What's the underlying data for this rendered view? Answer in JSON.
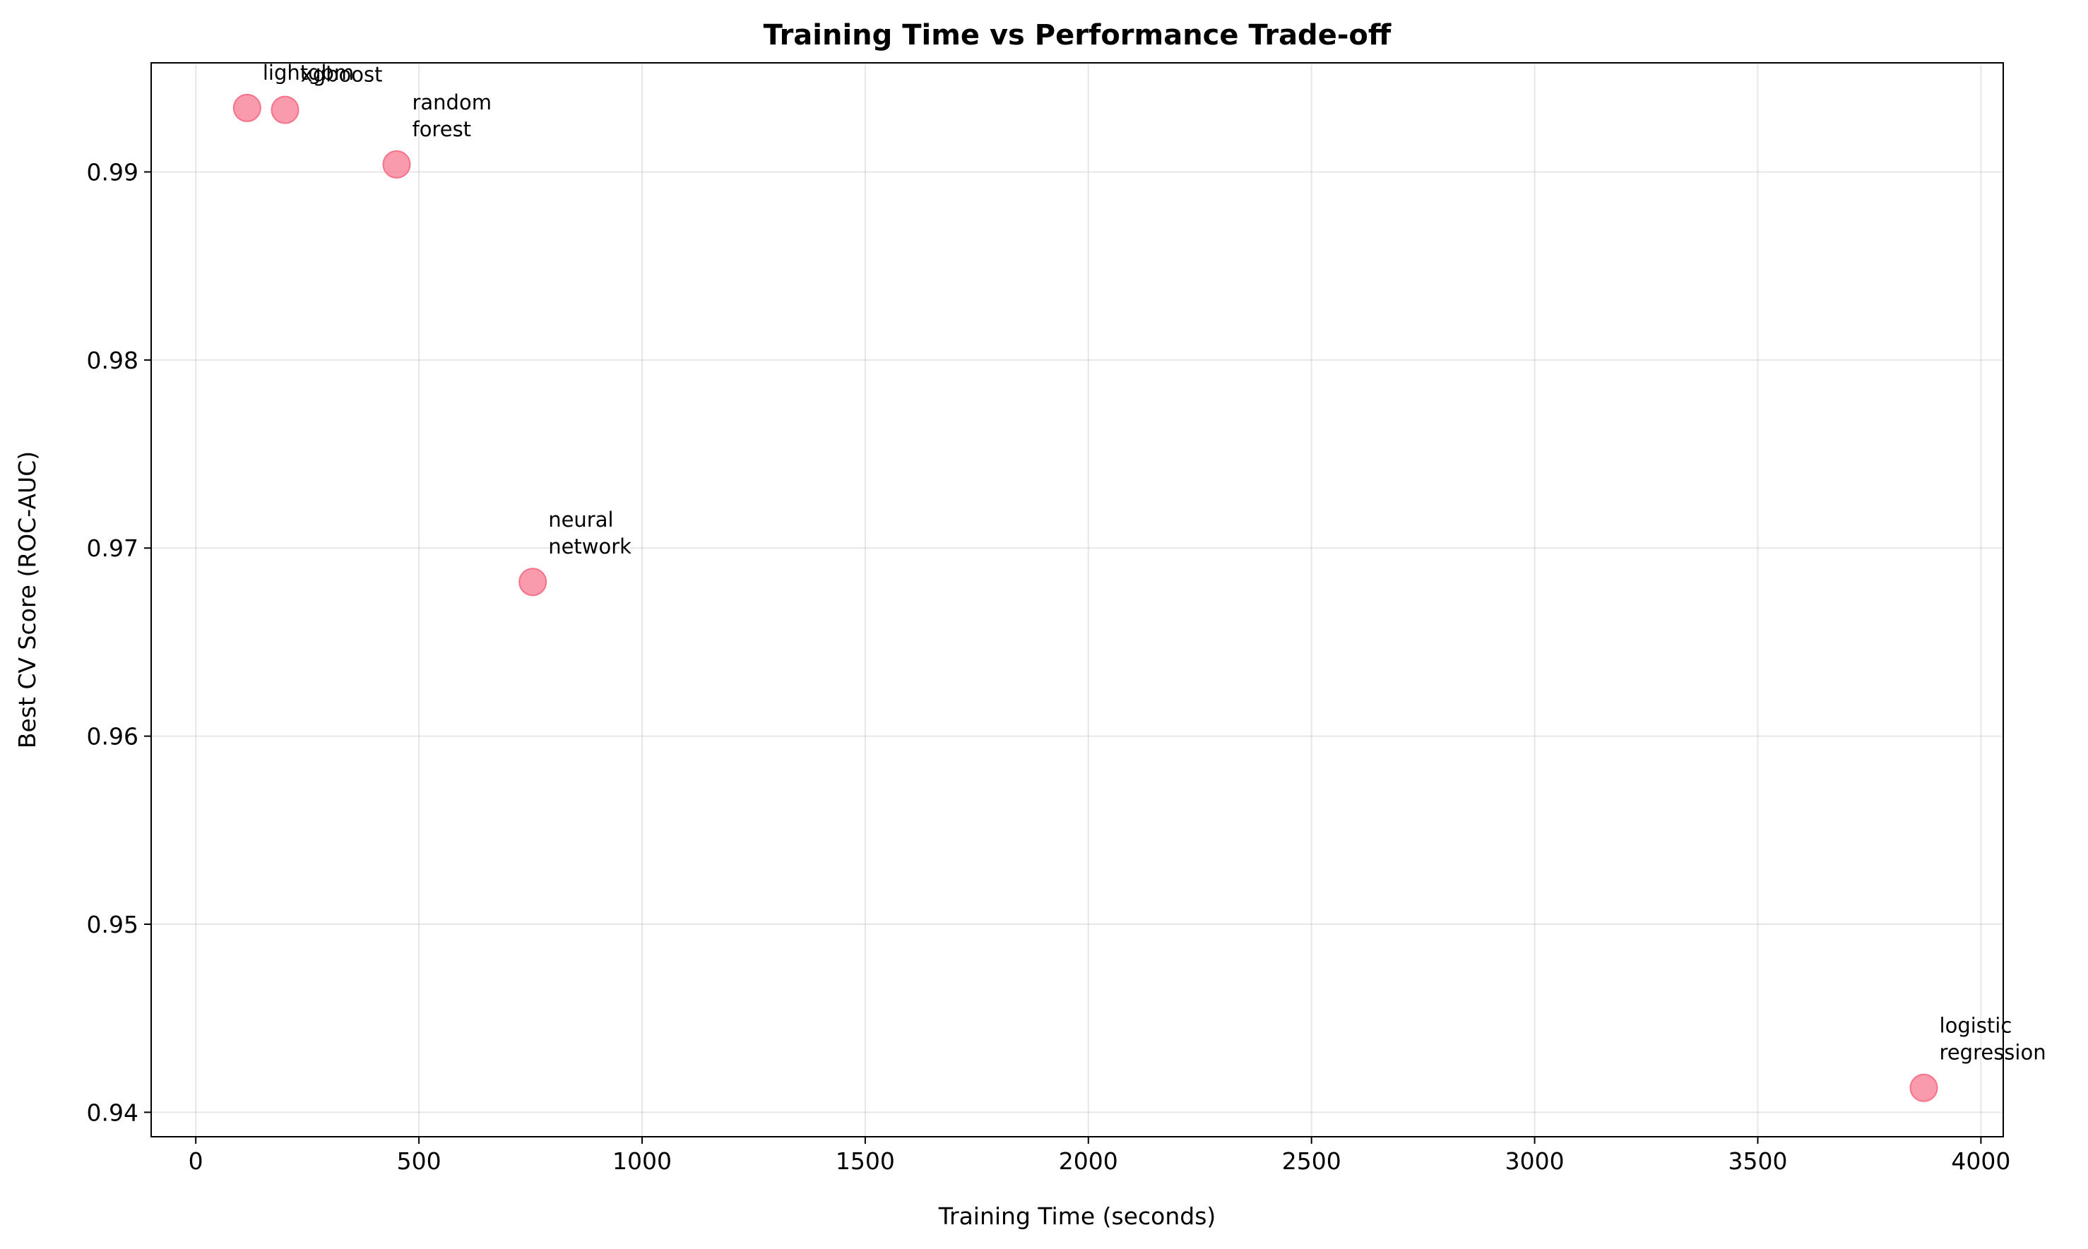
{
  "chart_data": {
    "type": "scatter",
    "title": "Training Time vs Performance Trade-off",
    "xlabel": "Training Time (seconds)",
    "ylabel": "Best CV Score (ROC-AUC)",
    "xlim": [
      -100,
      4050
    ],
    "ylim": [
      0.9387,
      0.9958
    ],
    "xticks": [
      0,
      500,
      1000,
      1500,
      2000,
      2500,
      3000,
      3500,
      4000
    ],
    "xtick_labels": [
      "0",
      "500",
      "1000",
      "1500",
      "2000",
      "2500",
      "3000",
      "3500",
      "4000"
    ],
    "yticks": [
      0.94,
      0.95,
      0.96,
      0.97,
      0.98,
      0.99
    ],
    "ytick_labels": [
      "0.94",
      "0.95",
      "0.96",
      "0.97",
      "0.98",
      "0.99"
    ],
    "grid": true,
    "marker_color": "#f77189",
    "points": [
      {
        "label_lines": [
          "lightgbm"
        ],
        "x": 115,
        "y": 0.9934
      },
      {
        "label_lines": [
          "xgboost"
        ],
        "x": 200,
        "y": 0.9933
      },
      {
        "label_lines": [
          "random",
          "forest"
        ],
        "x": 450,
        "y": 0.9904
      },
      {
        "label_lines": [
          "neural",
          "network"
        ],
        "x": 755,
        "y": 0.9682
      },
      {
        "label_lines": [
          "logistic",
          "regression"
        ],
        "x": 3872,
        "y": 0.9413
      }
    ]
  }
}
